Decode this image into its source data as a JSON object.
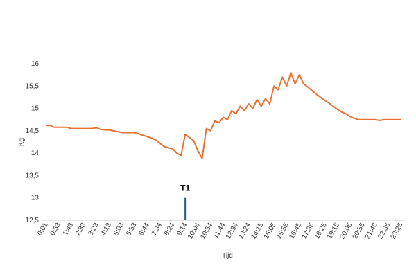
{
  "chart_data": {
    "type": "line",
    "x_label": "Tijd",
    "y_label": "Kg",
    "categories": [
      "0:01",
      null,
      null,
      "0:53",
      null,
      null,
      "1:43",
      null,
      null,
      "2:33",
      null,
      null,
      "3:23",
      null,
      null,
      "4:13",
      null,
      null,
      "5:03",
      null,
      null,
      "5:53",
      null,
      null,
      "6:44",
      null,
      null,
      "7:34",
      null,
      null,
      "8:24",
      null,
      null,
      "9:14",
      null,
      null,
      "10:04",
      null,
      null,
      "10:54",
      null,
      null,
      "11:44",
      null,
      null,
      "12:34",
      null,
      null,
      "13:24",
      null,
      null,
      "14:15",
      null,
      null,
      "15:05",
      null,
      null,
      "15:55",
      null,
      null,
      "16:45",
      null,
      null,
      "17:35",
      null,
      null,
      "18:25",
      null,
      null,
      "19:15",
      null,
      null,
      "20:05",
      null,
      null,
      "20:55",
      null,
      null,
      "21:46",
      null,
      null,
      "22:36",
      null,
      null,
      "23:26"
    ],
    "values": [
      14.62,
      14.62,
      14.58,
      14.58,
      14.58,
      14.58,
      14.55,
      14.55,
      14.55,
      14.55,
      14.55,
      14.55,
      14.57,
      14.53,
      14.52,
      14.52,
      14.5,
      14.48,
      14.46,
      14.46,
      14.46,
      14.46,
      14.43,
      14.4,
      14.37,
      14.34,
      14.3,
      14.22,
      14.15,
      14.12,
      14.1,
      14.0,
      13.95,
      14.42,
      14.35,
      14.28,
      14.05,
      13.88,
      14.55,
      14.5,
      14.72,
      14.68,
      14.8,
      14.75,
      14.95,
      14.88,
      15.05,
      14.95,
      15.1,
      15.0,
      15.2,
      15.05,
      15.22,
      15.1,
      15.5,
      15.42,
      15.7,
      15.5,
      15.8,
      15.55,
      15.75,
      15.55,
      15.48,
      15.4,
      15.32,
      15.25,
      15.18,
      15.12,
      15.05,
      14.98,
      14.92,
      14.88,
      14.82,
      14.78,
      14.75,
      14.75,
      14.75,
      14.75,
      14.75,
      14.73,
      14.75,
      14.75,
      14.75,
      14.75,
      14.75
    ],
    "color": "#e97132",
    "ylim": [
      12.5,
      16
    ],
    "yticks": [
      {
        "value": 12.5,
        "label": "12,5"
      },
      13,
      {
        "value": 13.5,
        "label": "13,5"
      },
      14,
      {
        "value": 14.5,
        "label": "14,5"
      },
      15,
      {
        "value": 15.5,
        "label": "15,5"
      },
      16
    ],
    "grid": false,
    "annotations": [
      {
        "text": "T1",
        "x": "9:14",
        "y": 13,
        "color": "#1f5f78"
      }
    ]
  }
}
